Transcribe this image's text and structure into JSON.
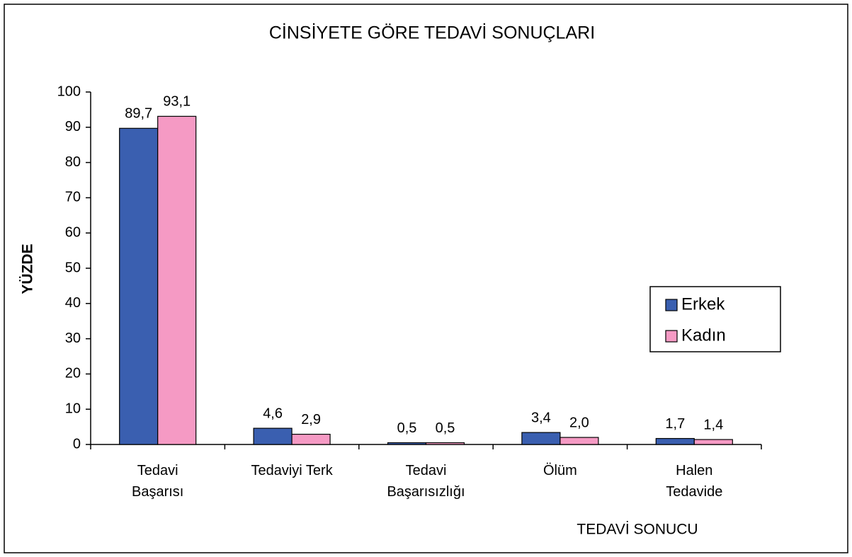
{
  "chart_data": {
    "type": "bar",
    "title": "CİNSİYETE GÖRE TEDAVİ SONUÇLARI",
    "x_label": "TEDAVİ SONUCU",
    "y_label": "YÜZDE",
    "categories": [
      "Tedavi\nBaşarısı",
      "Tedaviyi Terk",
      "Tedavi\nBaşarısızlığı",
      "Ölüm",
      "Halen\nTedavide"
    ],
    "series": [
      {
        "name": "Erkek",
        "color": "#3a5fb0",
        "values": [
          89.7,
          4.6,
          0.5,
          3.4,
          1.7
        ],
        "value_labels": [
          "89,7",
          "4,6",
          "0,5",
          "3,4",
          "1,7"
        ]
      },
      {
        "name": "Kadın",
        "color": "#f59ac4",
        "values": [
          93.1,
          2.9,
          0.5,
          2.0,
          1.4
        ],
        "value_labels": [
          "93,1",
          "2,9",
          "0,5",
          "2,0",
          "1,4"
        ]
      }
    ],
    "ylim": [
      0,
      100
    ],
    "yticks": [
      0,
      10,
      20,
      30,
      40,
      50,
      60,
      70,
      80,
      90,
      100
    ],
    "legend": "right"
  }
}
